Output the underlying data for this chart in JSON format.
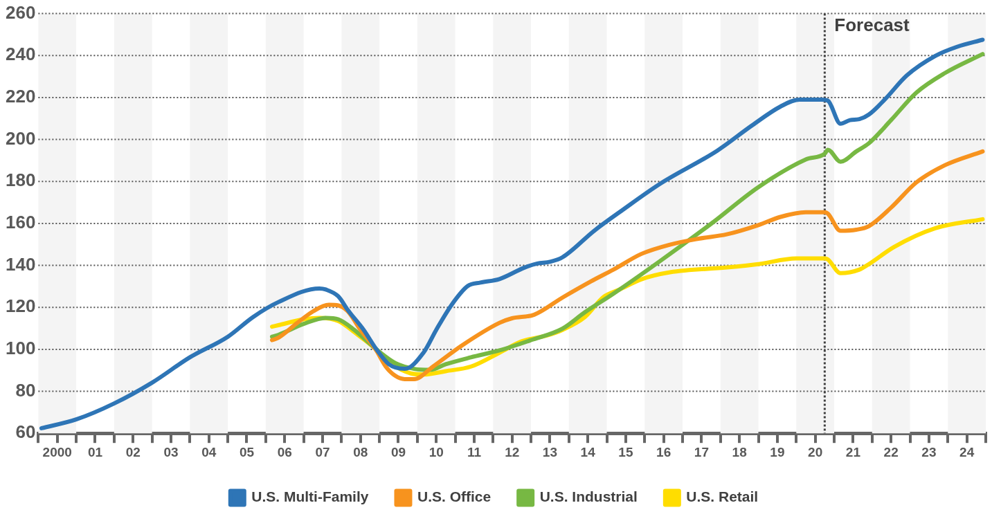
{
  "chart_data": {
    "type": "line",
    "xlim": [
      "2000",
      "2025"
    ],
    "ylim": [
      60,
      260
    ],
    "xticks": [
      {
        "value": "2000",
        "label": null
      },
      {
        "value": "2000-07",
        "label": "2000"
      },
      {
        "value": "2001",
        "label": null
      },
      {
        "value": "2001-07",
        "label": "01"
      },
      {
        "value": "2002",
        "label": null
      },
      {
        "value": "2002-07",
        "label": "02"
      },
      {
        "value": "2003",
        "label": null
      },
      {
        "value": "2003-07",
        "label": "03"
      },
      {
        "value": "2004",
        "label": null
      },
      {
        "value": "2004-07",
        "label": "04"
      },
      {
        "value": "2005",
        "label": null
      },
      {
        "value": "2005-07",
        "label": "05"
      },
      {
        "value": "2006",
        "label": null
      },
      {
        "value": "2006-07",
        "label": "06"
      },
      {
        "value": "2007",
        "label": null
      },
      {
        "value": "2007-07",
        "label": "07"
      },
      {
        "value": "2008",
        "label": null
      },
      {
        "value": "2008-07",
        "label": "08"
      },
      {
        "value": "2009",
        "label": null
      },
      {
        "value": "2009-07",
        "label": "09"
      },
      {
        "value": "2010",
        "label": null
      },
      {
        "value": "2010-07",
        "label": "10"
      },
      {
        "value": "2011",
        "label": null
      },
      {
        "value": "2011-07",
        "label": "11"
      },
      {
        "value": "2012",
        "label": null
      },
      {
        "value": "2012-07",
        "label": "12"
      },
      {
        "value": "2013",
        "label": null
      },
      {
        "value": "2013-07",
        "label": "13"
      },
      {
        "value": "2014",
        "label": null
      },
      {
        "value": "2014-07",
        "label": "14"
      },
      {
        "value": "2015",
        "label": null
      },
      {
        "value": "2015-07",
        "label": "15"
      },
      {
        "value": "2016",
        "label": null
      },
      {
        "value": "2016-07",
        "label": "16"
      },
      {
        "value": "2017",
        "label": null
      },
      {
        "value": "2017-07",
        "label": "17"
      },
      {
        "value": "2018",
        "label": null
      },
      {
        "value": "2018-07",
        "label": "18"
      },
      {
        "value": "2019",
        "label": null
      },
      {
        "value": "2019-07",
        "label": "19"
      },
      {
        "value": "2020",
        "label": null
      },
      {
        "value": "2020-07",
        "label": "20"
      },
      {
        "value": "2021",
        "label": null
      },
      {
        "value": "2021-07",
        "label": "21"
      },
      {
        "value": "2022",
        "label": null
      },
      {
        "value": "2022-07",
        "label": "22"
      },
      {
        "value": "2023",
        "label": null
      },
      {
        "value": "2023-07",
        "label": "23"
      },
      {
        "value": "2024",
        "label": null
      },
      {
        "value": "2024-07",
        "label": "24"
      },
      {
        "value": "2025",
        "label": null
      }
    ],
    "yticks": [
      60,
      80,
      100,
      120,
      140,
      160,
      180,
      200,
      220,
      240,
      260
    ],
    "grid": "y",
    "legend": "bottom",
    "marker": "none",
    "bands": [
      {
        "axis": "x",
        "from": "2000",
        "to": "2001",
        "color": "#f4f4f4"
      },
      {
        "axis": "x",
        "from": "2002",
        "to": "2003",
        "color": "#f4f4f4"
      },
      {
        "axis": "x",
        "from": "2004",
        "to": "2005",
        "color": "#f4f4f4"
      },
      {
        "axis": "x",
        "from": "2006",
        "to": "2007",
        "color": "#f4f4f4"
      },
      {
        "axis": "x",
        "from": "2008",
        "to": "2009",
        "color": "#f4f4f4"
      },
      {
        "axis": "x",
        "from": "2010",
        "to": "2011",
        "color": "#f4f4f4"
      },
      {
        "axis": "x",
        "from": "2012",
        "to": "2013",
        "color": "#f4f4f4"
      },
      {
        "axis": "x",
        "from": "2014",
        "to": "2015",
        "color": "#f4f4f4"
      },
      {
        "axis": "x",
        "from": "2016",
        "to": "2017",
        "color": "#f4f4f4"
      },
      {
        "axis": "x",
        "from": "2018",
        "to": "2019",
        "color": "#f4f4f4"
      },
      {
        "axis": "x",
        "from": "2020",
        "to": "2021",
        "color": "#f4f4f4"
      },
      {
        "axis": "x",
        "from": "2022",
        "to": "2023",
        "color": "#f4f4f4"
      },
      {
        "axis": "x",
        "from": "2024",
        "to": "2025",
        "color": "#f4f4f4"
      }
    ],
    "ref_lines": [
      {
        "axis": "x",
        "value": "2020-10",
        "label": "Forecast",
        "color": "#404040",
        "line_style": "dotted"
      }
    ],
    "series": [
      {
        "name": "U.S. Multi-Family",
        "color": "#2e75b6",
        "x": [
          "2000-02",
          "2001-01",
          "2002-01",
          "2003-01",
          "2004-01",
          "2005-01",
          "2005-09",
          "2006-05",
          "2007-06",
          "2007-08",
          "2007-12",
          "2008-03",
          "2008-08",
          "2008-12",
          "2009-04",
          "2009-09",
          "2010-03",
          "2010-07",
          "2010-12",
          "2011-05",
          "2011-09",
          "2012-03",
          "2012-11",
          "2013-03",
          "2013-07",
          "2013-11",
          "2014-09",
          "2015-06",
          "2016-06",
          "2017-12",
          "2018-11",
          "2019-08",
          "2020-02",
          "2020-09",
          "2020-11",
          "2021-03",
          "2021-06",
          "2021-09",
          "2021-12",
          "2022-05",
          "2022-12",
          "2023-09",
          "2024-04",
          "2024-12"
        ],
        "values": [
          62.4,
          66.6,
          74.2,
          84.1,
          96.2,
          106,
          115.4,
          122.5,
          129,
          128.5,
          125.2,
          118.7,
          109.3,
          100.1,
          92.9,
          90.7,
          98.5,
          109.3,
          121.5,
          130.2,
          131.8,
          133.5,
          139,
          140.9,
          141.7,
          143.9,
          156.5,
          166.4,
          179,
          194.7,
          206.7,
          215.7,
          219,
          219,
          218.5,
          207.5,
          209.2,
          209.7,
          211.9,
          219,
          230.5,
          239.8,
          244.2,
          247.5
        ]
      },
      {
        "name": "U.S. Office",
        "color": "#f7931e",
        "x": [
          "2006-03",
          "2006-05",
          "2006-11",
          "2007-04",
          "2007-09",
          "2007-12",
          "2008-03",
          "2008-07",
          "2008-12",
          "2009-03",
          "2009-06",
          "2009-09",
          "2009-12",
          "2010-06",
          "2011-03",
          "2012-03",
          "2012-07",
          "2013-02",
          "2013-11",
          "2014-08",
          "2015-03",
          "2015-12",
          "2016-09",
          "2017-06",
          "2018-03",
          "2019-01",
          "2019-08",
          "2020-04",
          "2020-10",
          "2020-11",
          "2021-03",
          "2021-08",
          "2021-12",
          "2022-07",
          "2023-03",
          "2023-12",
          "2024-12"
        ],
        "values": [
          104.4,
          105.5,
          112.6,
          118.1,
          121.2,
          120.9,
          118.1,
          109.3,
          99.5,
          91.8,
          87.4,
          85.8,
          85.8,
          91.8,
          101.7,
          112.6,
          114.8,
          116.5,
          124.7,
          132.4,
          137.9,
          145.5,
          149.9,
          152.7,
          154.8,
          159.2,
          163.1,
          165.3,
          165.3,
          164.7,
          156.5,
          157,
          158.7,
          167.5,
          179.5,
          187.7,
          194.3
        ]
      },
      {
        "name": "U.S. Industrial",
        "color": "#77b843",
        "x": [
          "2006-03",
          "2006-05",
          "2007-01",
          "2007-08",
          "2007-12",
          "2008-05",
          "2008-12",
          "2009-06",
          "2009-12",
          "2010-05",
          "2010-10",
          "2011-06",
          "2012-03",
          "2013-01",
          "2013-11",
          "2014-06",
          "2015-03",
          "2016-06",
          "2017-10",
          "2019-01",
          "2020-04",
          "2020-10",
          "2020-11",
          "2021-03",
          "2021-08",
          "2021-12",
          "2022-07",
          "2023-03",
          "2023-12",
          "2024-12"
        ],
        "values": [
          106,
          106.9,
          112.1,
          115,
          114.3,
          109.3,
          100,
          93.5,
          90.7,
          90.2,
          92.9,
          96.2,
          99.5,
          104.4,
          109.9,
          117.6,
          126.4,
          142.2,
          159.8,
          177.3,
          190.5,
          193.2,
          195.1,
          189.4,
          194.3,
          198.2,
          209.2,
          222.3,
          231.6,
          240.7
        ]
      },
      {
        "name": "U.S. Retail",
        "color": "#ffdd00",
        "x": [
          "2006-03",
          "2006-05",
          "2007-01",
          "2007-06",
          "2007-12",
          "2008-06",
          "2008-12",
          "2009-05",
          "2009-11",
          "2010-03",
          "2010-10",
          "2011-06",
          "2012-03",
          "2012-10",
          "2013-06",
          "2013-11",
          "2014-06",
          "2014-12",
          "2015-05",
          "2015-12",
          "2016-09",
          "2018-03",
          "2019-01",
          "2020-01",
          "2020-10",
          "2020-11",
          "2021-03",
          "2021-09",
          "2021-12",
          "2022-08",
          "2023-09",
          "2024-12"
        ],
        "values": [
          110.8,
          111.5,
          114.3,
          115,
          113.5,
          107.1,
          100,
          92.9,
          88.5,
          88,
          89.6,
          91.8,
          98.4,
          103.8,
          106.6,
          109.3,
          115.3,
          125,
          128.5,
          133.4,
          136.7,
          139,
          140.6,
          143.3,
          143.3,
          142.8,
          136.3,
          138,
          140.6,
          148.8,
          157.7,
          162
        ]
      }
    ]
  }
}
